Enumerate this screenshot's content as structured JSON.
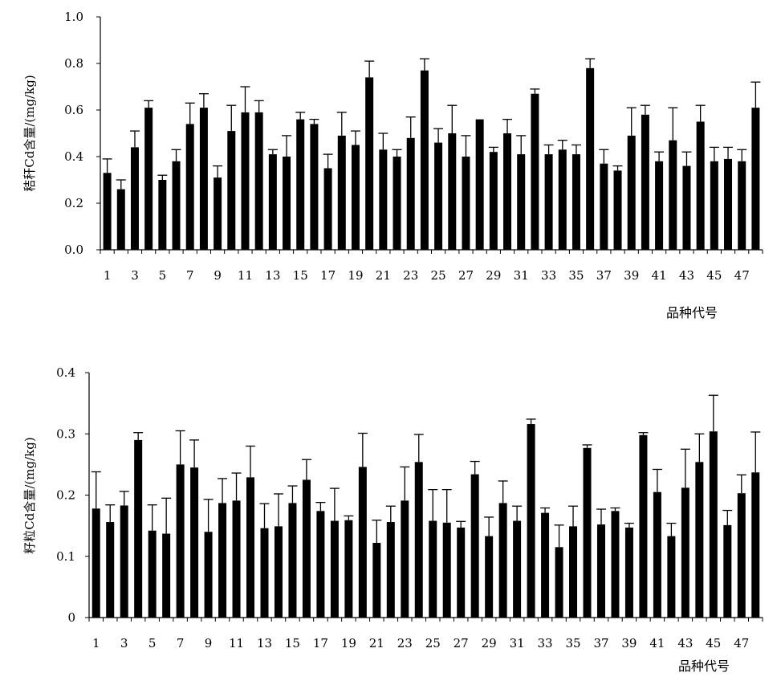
{
  "chart_data": [
    {
      "type": "bar",
      "ylabel": "秸秆Cd含量/(mg/kg)",
      "xlabel": "品种代号",
      "ylim": [
        0,
        1.0
      ],
      "yticks": [
        0.0,
        0.2,
        0.4,
        0.6,
        0.8,
        1.0
      ],
      "ytick_labels": [
        "0.0",
        "0.2",
        "0.4",
        "0.6",
        "0.8",
        "1.0"
      ],
      "xtick_labels": [
        "1",
        "3",
        "5",
        "7",
        "9",
        "11",
        "13",
        "15",
        "17",
        "19",
        "21",
        "23",
        "25",
        "27",
        "29",
        "31",
        "33",
        "35",
        "37",
        "39",
        "41",
        "43",
        "45",
        "47"
      ],
      "categories": [
        "1",
        "2",
        "3",
        "4",
        "5",
        "6",
        "7",
        "8",
        "9",
        "10",
        "11",
        "12",
        "13",
        "14",
        "15",
        "16",
        "17",
        "18",
        "19",
        "20",
        "21",
        "22",
        "23",
        "24",
        "25",
        "26",
        "27",
        "28",
        "29",
        "30",
        "31",
        "32",
        "33",
        "34",
        "35",
        "36",
        "37",
        "38",
        "39",
        "40",
        "41",
        "42",
        "43",
        "44",
        "45",
        "46",
        "47",
        "48"
      ],
      "values": [
        0.33,
        0.26,
        0.44,
        0.61,
        0.3,
        0.38,
        0.54,
        0.61,
        0.31,
        0.51,
        0.59,
        0.59,
        0.41,
        0.4,
        0.56,
        0.54,
        0.35,
        0.49,
        0.45,
        0.74,
        0.43,
        0.4,
        0.48,
        0.77,
        0.46,
        0.5,
        0.4,
        0.56,
        0.42,
        0.5,
        0.41,
        0.67,
        0.41,
        0.43,
        0.41,
        0.78,
        0.37,
        0.34,
        0.49,
        0.58,
        0.38,
        0.47,
        0.36,
        0.55,
        0.38,
        0.39,
        0.38,
        0.61
      ],
      "errors": [
        0.06,
        0.04,
        0.07,
        0.03,
        0.02,
        0.05,
        0.09,
        0.06,
        0.05,
        0.11,
        0.11,
        0.05,
        0.02,
        0.09,
        0.03,
        0.02,
        0.06,
        0.1,
        0.06,
        0.07,
        0.07,
        0.03,
        0.09,
        0.05,
        0.06,
        0.12,
        0.09,
        0.0,
        0.02,
        0.06,
        0.08,
        0.02,
        0.04,
        0.04,
        0.04,
        0.04,
        0.06,
        0.02,
        0.12,
        0.04,
        0.04,
        0.14,
        0.06,
        0.07,
        0.06,
        0.05,
        0.05,
        0.11
      ],
      "grid": false
    },
    {
      "type": "bar",
      "ylabel": "籽粒Cd含量/(mg/kg)",
      "xlabel": "品种代号",
      "ylim": [
        0,
        0.4
      ],
      "yticks": [
        0,
        0.1,
        0.2,
        0.3,
        0.4
      ],
      "ytick_labels": [
        "0",
        "0.1",
        "0.2",
        "0.3",
        "0.4"
      ],
      "xtick_labels": [
        "1",
        "3",
        "5",
        "7",
        "9",
        "11",
        "13",
        "15",
        "17",
        "19",
        "21",
        "23",
        "25",
        "27",
        "29",
        "31",
        "33",
        "35",
        "37",
        "39",
        "41",
        "43",
        "45",
        "47"
      ],
      "categories": [
        "1",
        "2",
        "3",
        "4",
        "5",
        "6",
        "7",
        "8",
        "9",
        "10",
        "11",
        "12",
        "13",
        "14",
        "15",
        "16",
        "17",
        "18",
        "19",
        "20",
        "21",
        "22",
        "23",
        "24",
        "25",
        "26",
        "27",
        "28",
        "29",
        "30",
        "31",
        "32",
        "33",
        "34",
        "35",
        "36",
        "37",
        "38",
        "39",
        "40",
        "41",
        "42",
        "43",
        "44",
        "45",
        "46",
        "47",
        "48"
      ],
      "values": [
        0.178,
        0.156,
        0.183,
        0.29,
        0.142,
        0.137,
        0.25,
        0.245,
        0.14,
        0.187,
        0.191,
        0.229,
        0.146,
        0.149,
        0.187,
        0.225,
        0.174,
        0.158,
        0.159,
        0.246,
        0.122,
        0.156,
        0.191,
        0.254,
        0.158,
        0.155,
        0.147,
        0.234,
        0.133,
        0.187,
        0.158,
        0.316,
        0.171,
        0.115,
        0.149,
        0.277,
        0.152,
        0.174,
        0.147,
        0.298,
        0.205,
        0.133,
        0.212,
        0.254,
        0.304,
        0.151,
        0.203,
        0.237
      ],
      "errors": [
        0.06,
        0.028,
        0.023,
        0.012,
        0.042,
        0.058,
        0.055,
        0.045,
        0.053,
        0.04,
        0.045,
        0.051,
        0.04,
        0.053,
        0.028,
        0.033,
        0.014,
        0.053,
        0.007,
        0.055,
        0.037,
        0.026,
        0.055,
        0.045,
        0.051,
        0.054,
        0.01,
        0.021,
        0.031,
        0.036,
        0.024,
        0.008,
        0.008,
        0.036,
        0.033,
        0.005,
        0.025,
        0.005,
        0.007,
        0.004,
        0.037,
        0.021,
        0.063,
        0.046,
        0.059,
        0.024,
        0.03,
        0.066
      ],
      "grid": false
    }
  ]
}
